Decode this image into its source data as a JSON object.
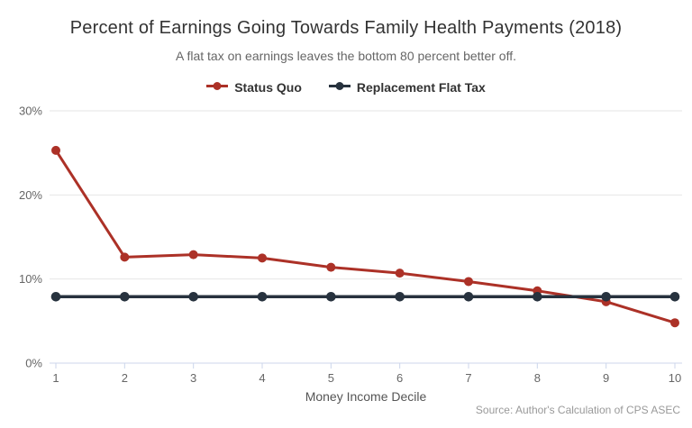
{
  "chart_data": {
    "type": "line",
    "title": "Percent of Earnings Going Towards Family Health Payments (2018)",
    "subtitle": "A flat tax on earnings leaves the bottom 80 percent better off.",
    "xlabel": "Money Income Decile",
    "categories": [
      "1",
      "2",
      "3",
      "4",
      "5",
      "6",
      "7",
      "8",
      "9",
      "10"
    ],
    "series": [
      {
        "name": "Status Quo",
        "color": "#ac3127",
        "values": [
          25.3,
          12.6,
          12.9,
          12.5,
          11.4,
          10.7,
          9.7,
          8.6,
          7.3,
          4.8
        ]
      },
      {
        "name": "Replacement Flat Tax",
        "color": "#27323e",
        "values": [
          7.9,
          7.9,
          7.9,
          7.9,
          7.9,
          7.9,
          7.9,
          7.9,
          7.9,
          7.9
        ]
      }
    ],
    "yticks": [
      0,
      10,
      20,
      30
    ],
    "ytick_labels": [
      "0%",
      "10%",
      "20%",
      "30%"
    ],
    "ylim": [
      0,
      31.5
    ],
    "grid": true,
    "legend_position": "top",
    "source": "Source: Author's Calculation of CPS ASEC",
    "colors": {
      "grid_line": "#e6e6e6",
      "axis_line": "#ccd6eb",
      "title": "#333333",
      "subtitle": "#666666",
      "tick_label": "#666666",
      "source": "#999999"
    }
  }
}
